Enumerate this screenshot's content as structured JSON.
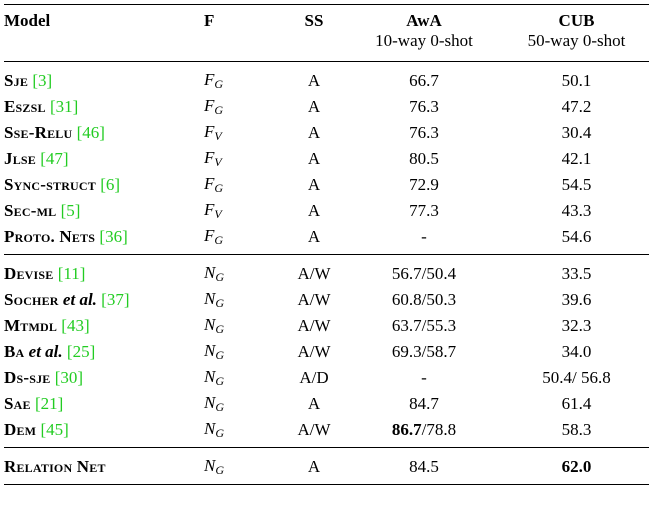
{
  "headers": {
    "model": "Model",
    "f": "F",
    "ss": "SS",
    "awa": "AwA",
    "awa_sub": "10-way 0-shot",
    "cub": "CUB",
    "cub_sub": "50-way 0-shot"
  },
  "groups": [
    {
      "rows": [
        {
          "name": "Sje",
          "italic_suffix": "",
          "ref": "[3]",
          "f_base": "F",
          "f_sub": "G",
          "ss": "A",
          "awa": "66.7",
          "awa_extra": "",
          "cub": "50.1"
        },
        {
          "name": "Eszsl",
          "italic_suffix": "",
          "ref": "[31]",
          "f_base": "F",
          "f_sub": "G",
          "ss": "A",
          "awa": "76.3",
          "awa_extra": "",
          "cub": "47.2"
        },
        {
          "name": "Sse-Relu",
          "italic_suffix": "",
          "ref": "[46]",
          "f_base": "F",
          "f_sub": "V",
          "ss": "A",
          "awa": "76.3",
          "awa_extra": "",
          "cub": "30.4"
        },
        {
          "name": "Jlse",
          "italic_suffix": "",
          "ref": "[47]",
          "f_base": "F",
          "f_sub": "V",
          "ss": "A",
          "awa": "80.5",
          "awa_extra": "",
          "cub": "42.1"
        },
        {
          "name": "Sync-struct",
          "italic_suffix": "",
          "ref": "[6]",
          "f_base": "F",
          "f_sub": "G",
          "ss": "A",
          "awa": "72.9",
          "awa_extra": "",
          "cub": "54.5"
        },
        {
          "name": "Sec-ml",
          "italic_suffix": "",
          "ref": "[5]",
          "f_base": "F",
          "f_sub": "V",
          "ss": "A",
          "awa": "77.3",
          "awa_extra": "",
          "cub": "43.3"
        },
        {
          "name": "Proto. Nets",
          "italic_suffix": "",
          "ref": "[36]",
          "f_base": "F",
          "f_sub": "G",
          "ss": "A",
          "awa": "-",
          "awa_extra": "",
          "cub": "54.6"
        }
      ]
    },
    {
      "rows": [
        {
          "name": "Devise",
          "italic_suffix": "",
          "ref": "[11]",
          "f_base": "N",
          "f_sub": "G",
          "ss": "A/W",
          "awa": "56.7/50.4",
          "awa_extra": "",
          "cub": "33.5"
        },
        {
          "name": "Socher",
          "italic_suffix": " et al.",
          "ref": "[37]",
          "f_base": "N",
          "f_sub": "G",
          "ss": "A/W",
          "awa": "60.8/50.3",
          "awa_extra": "",
          "cub": "39.6"
        },
        {
          "name": "Mtmdl",
          "italic_suffix": "",
          "ref": "[43]",
          "f_base": "N",
          "f_sub": "G",
          "ss": "A/W",
          "awa": "63.7/55.3",
          "awa_extra": "",
          "cub": "32.3"
        },
        {
          "name": "Ba",
          "italic_suffix": " et al.",
          "ref": "[25]",
          "f_base": "N",
          "f_sub": "G",
          "ss": "A/W",
          "awa": "69.3/58.7",
          "awa_extra": "",
          "cub": "34.0"
        },
        {
          "name": "Ds-sje",
          "italic_suffix": "",
          "ref": "[30]",
          "f_base": "N",
          "f_sub": "G",
          "ss": "A/D",
          "awa": "-",
          "awa_extra": "",
          "cub": "50.4/ 56.8"
        },
        {
          "name": "Sae",
          "italic_suffix": "",
          "ref": "[21]",
          "f_base": "N",
          "f_sub": "G",
          "ss": "A",
          "awa": "84.7",
          "awa_extra": "",
          "cub": "61.4"
        },
        {
          "name": "Dem",
          "italic_suffix": "",
          "ref": "[45]",
          "f_base": "N",
          "f_sub": "G",
          "ss": "A/W",
          "awa": "86.7",
          "awa_extra": "/78.8",
          "cub": "58.3"
        }
      ]
    }
  ],
  "final_row": {
    "name": "Relation Net",
    "f_base": "N",
    "f_sub": "G",
    "ss": "A",
    "awa": "84.5",
    "cub": "62.0"
  },
  "colors": {
    "reference_link": "#22cc22"
  }
}
